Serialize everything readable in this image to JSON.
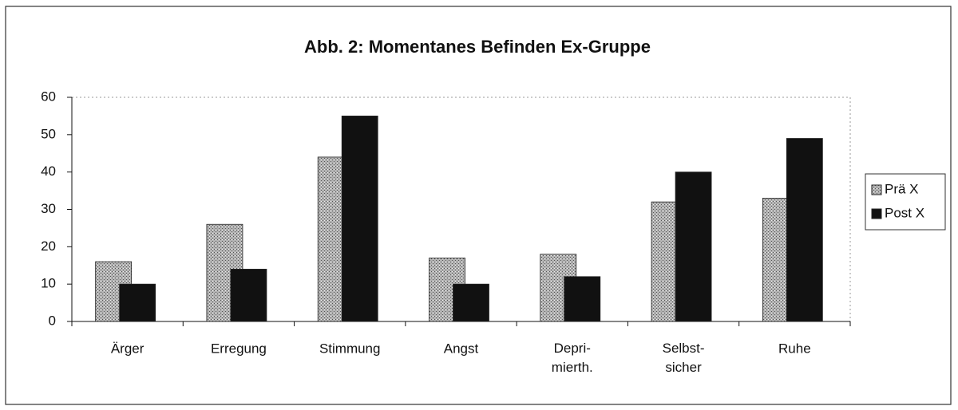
{
  "chart_data": {
    "type": "bar",
    "title": "Abb. 2: Momentanes Befinden Ex-Gruppe",
    "categories": [
      "Ärger",
      "Erregung",
      "Stimmung",
      "Angst",
      "Depri-\nmierth.",
      "Selbst-\nsicher",
      "Ruhe"
    ],
    "series": [
      {
        "name": "Prä X",
        "color": "#b4b4b4",
        "values": [
          16,
          26,
          44,
          17,
          18,
          32,
          33
        ]
      },
      {
        "name": "Post X",
        "color": "#111111",
        "values": [
          10,
          14,
          55,
          10,
          12,
          40,
          49
        ]
      }
    ],
    "ylim": [
      0,
      60
    ],
    "yticks": [
      0,
      10,
      20,
      30,
      40,
      50,
      60
    ],
    "legend": "right"
  }
}
